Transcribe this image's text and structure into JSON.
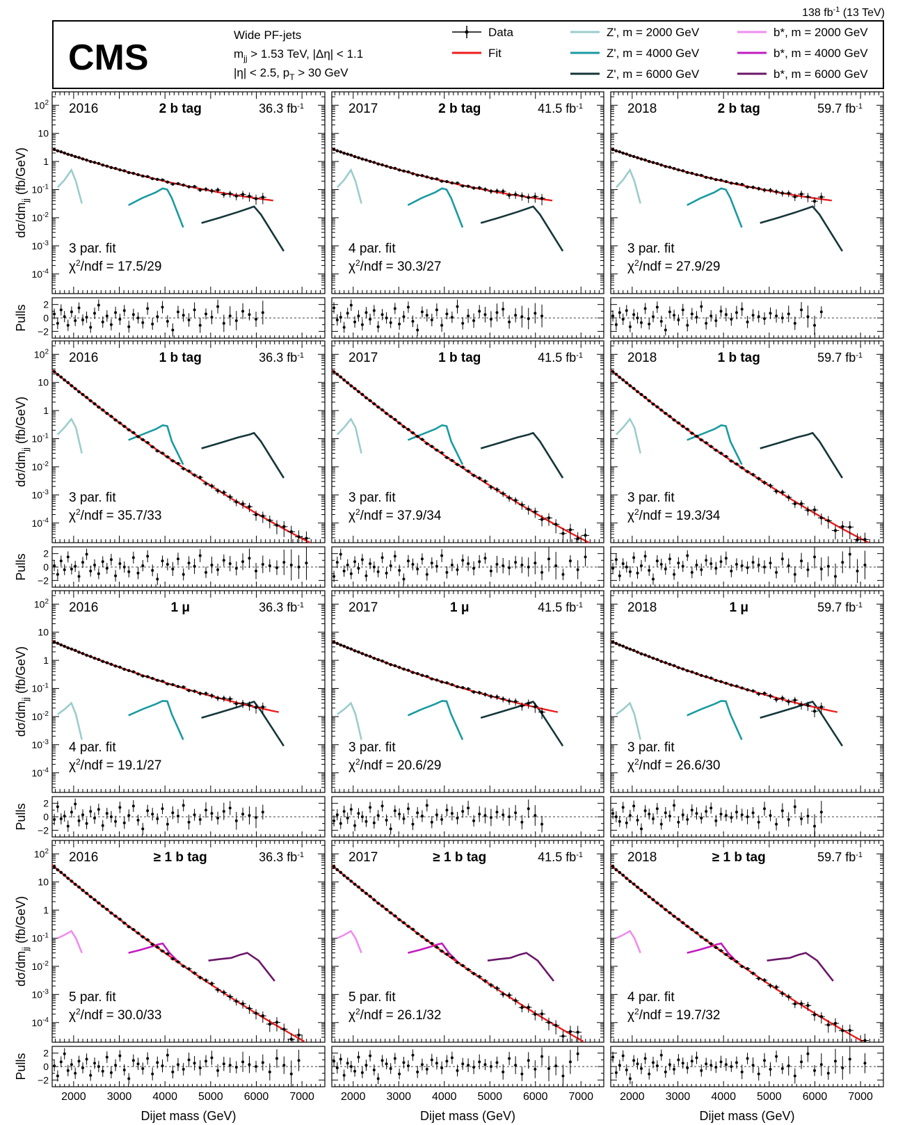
{
  "header": {
    "lumi_label": "138 fb",
    "lumi_sup": "-1",
    "lumi_energy": " (13 TeV)",
    "experiment": "CMS",
    "selection": [
      {
        "pre": "Wide PF-jets",
        "sub": "",
        "post": ""
      },
      {
        "pre": "m",
        "sub": "jj",
        "post": " > 1.53 TeV, |Δη| < 1.1"
      },
      {
        "pre": "|η| < 2.5, p",
        "sub": "T",
        "post": " > 30 GeV"
      }
    ]
  },
  "legend": [
    {
      "label": "Data",
      "type": "errorbar",
      "color": "#000000"
    },
    {
      "label": "Fit",
      "type": "line",
      "color": "#ee1c1c"
    },
    {
      "label": "Z', m = 2000 GeV",
      "type": "line",
      "color": "#9ccccc"
    },
    {
      "label": "Z', m = 4000 GeV",
      "type": "line",
      "color": "#1a9aa0"
    },
    {
      "label": "Z', m = 6000 GeV",
      "type": "line",
      "color": "#14363a"
    },
    {
      "label": "b*, m = 2000 GeV",
      "type": "line",
      "color": "#f08cee"
    },
    {
      "label": "b*, m = 4000 GeV",
      "type": "line",
      "color": "#c21bc0"
    },
    {
      "label": "b*, m = 6000 GeV",
      "type": "line",
      "color": "#6a1668"
    }
  ],
  "axis_labels": {
    "ylabel_main": "dσ/dm",
    "ylabel_sub": "jj",
    "ylabel_units": " (fb/GeV)",
    "ylabel_pulls": "Pulls",
    "xlabel": "Dijet mass (GeV)"
  },
  "chart_data": {
    "type": "scatter",
    "title": "",
    "xlabel": "Dijet mass (GeV)",
    "ylabel": "dσ/dm_jj (fb/GeV)",
    "xlim": [
      1530,
      7500
    ],
    "ylim": [
      2e-05,
      300
    ],
    "yscale": "log",
    "pulls_ylim": [
      -3,
      3
    ],
    "x_ticks": [
      2000,
      3000,
      4000,
      5000,
      6000,
      7000
    ],
    "y_ticks": [
      {
        "v": 100,
        "base": "10",
        "exp": "2"
      },
      {
        "v": 10,
        "base": "10",
        "exp": ""
      },
      {
        "v": 1,
        "base": "1",
        "exp": ""
      },
      {
        "v": 0.1,
        "base": "10",
        "exp": "-1"
      },
      {
        "v": 0.01,
        "base": "10",
        "exp": "-2"
      },
      {
        "v": 0.001,
        "base": "10",
        "exp": "-3"
      },
      {
        "v": 0.0001,
        "base": "10",
        "exp": "-4"
      }
    ],
    "pull_ticks": [
      2,
      0,
      -2
    ],
    "rows": [
      {
        "category": "2 b tag",
        "fit_start": 2.8,
        "fit_mid": 0.5,
        "fit_c": 1.3,
        "fit_end_x": 6400,
        "signals": [
          {
            "series": "Z', m = 2000 GeV",
            "x": [
              1650,
              1800,
              1950,
              2050,
              2180
            ],
            "y": [
              0.12,
              0.22,
              0.5,
              0.2,
              0.032
            ]
          },
          {
            "series": "Z', m = 4000 GeV",
            "x": [
              3200,
              3500,
              3800,
              3950,
              4050,
              4150,
              4400
            ],
            "y": [
              0.028,
              0.05,
              0.08,
              0.11,
              0.1,
              0.05,
              0.0045
            ]
          },
          {
            "series": "Z', m = 6000 GeV",
            "x": [
              4800,
              5200,
              5600,
              5850,
              5950,
              6100,
              6600
            ],
            "y": [
              0.0065,
              0.01,
              0.016,
              0.022,
              0.025,
              0.013,
              0.00065
            ]
          }
        ],
        "panels": [
          {
            "year": "2016",
            "lumi": "36.3",
            "fit_label": "3 par. fit",
            "chi2": "17.5/29"
          },
          {
            "year": "2017",
            "lumi": "41.5",
            "fit_label": "4 par. fit",
            "chi2": "30.3/27"
          },
          {
            "year": "2018",
            "lumi": "59.7",
            "fit_label": "3 par. fit",
            "chi2": "27.9/29"
          }
        ]
      },
      {
        "category": "1 b tag",
        "fit_start": 28,
        "fit_mid": 0.35,
        "fit_c": 1.6,
        "fit_end_x": 7500,
        "signals": [
          {
            "series": "Z', m = 2000 GeV",
            "x": [
              1650,
              1800,
              1950,
              2050,
              2180
            ],
            "y": [
              0.14,
              0.25,
              0.5,
              0.25,
              0.03
            ]
          },
          {
            "series": "Z', m = 4000 GeV",
            "x": [
              3200,
              3500,
              3800,
              3950,
              4050,
              4150,
              4400
            ],
            "y": [
              0.09,
              0.14,
              0.22,
              0.3,
              0.28,
              0.08,
              0.012
            ]
          },
          {
            "series": "Z', m = 6000 GeV",
            "x": [
              4800,
              5200,
              5600,
              5850,
              5950,
              6100,
              6600
            ],
            "y": [
              0.045,
              0.07,
              0.11,
              0.14,
              0.16,
              0.08,
              0.004
            ]
          }
        ],
        "panels": [
          {
            "year": "2016",
            "lumi": "36.3",
            "fit_label": "3 par. fit",
            "chi2": "35.7/33"
          },
          {
            "year": "2017",
            "lumi": "41.5",
            "fit_label": "3 par. fit",
            "chi2": "37.9/34"
          },
          {
            "year": "2018",
            "lumi": "59.7",
            "fit_label": "3 par. fit",
            "chi2": "19.3/34"
          }
        ]
      },
      {
        "category": "1 μ",
        "fit_start": 4.8,
        "fit_mid": 0.55,
        "fit_c": 1.25,
        "fit_end_x": 6500,
        "signals": [
          {
            "series": "Z', m = 2000 GeV",
            "x": [
              1650,
              1800,
              1950,
              2050,
              2180
            ],
            "y": [
              0.012,
              0.018,
              0.03,
              0.012,
              0.0015
            ]
          },
          {
            "series": "Z', m = 4000 GeV",
            "x": [
              3200,
              3500,
              3800,
              3950,
              4050,
              4150,
              4400
            ],
            "y": [
              0.011,
              0.018,
              0.028,
              0.036,
              0.035,
              0.012,
              0.0015
            ]
          },
          {
            "series": "Z', m = 6000 GeV",
            "x": [
              4800,
              5200,
              5600,
              5850,
              5950,
              6100,
              6600
            ],
            "y": [
              0.009,
              0.014,
              0.022,
              0.03,
              0.034,
              0.016,
              0.0009
            ]
          }
        ],
        "panels": [
          {
            "year": "2016",
            "lumi": "36.3",
            "fit_label": "4 par. fit",
            "chi2": "19.1/27"
          },
          {
            "year": "2017",
            "lumi": "41.5",
            "fit_label": "3 par. fit",
            "chi2": "20.6/29"
          },
          {
            "year": "2018",
            "lumi": "59.7",
            "fit_label": "3 par. fit",
            "chi2": "26.6/30"
          }
        ]
      },
      {
        "category": "≥ 1 b tag",
        "fit_start": 40,
        "fit_mid": 0.45,
        "fit_c": 1.5,
        "fit_end_x": 7500,
        "signals": [
          {
            "series": "b*, m = 2000 GeV",
            "x": [
              1650,
              1800,
              1950,
              2050,
              2180
            ],
            "y": [
              0.1,
              0.13,
              0.18,
              0.1,
              0.03
            ]
          },
          {
            "series": "b*, m = 4000 GeV",
            "x": [
              3200,
              3450,
              3700,
              3850,
              3950,
              4100,
              4300
            ],
            "y": [
              0.03,
              0.038,
              0.05,
              0.06,
              0.065,
              0.03,
              0.014
            ]
          },
          {
            "series": "b*, m = 6000 GeV",
            "x": [
              4950,
              5200,
              5450,
              5650,
              5800,
              6050,
              6400
            ],
            "y": [
              0.016,
              0.018,
              0.02,
              0.026,
              0.03,
              0.016,
              0.003
            ]
          }
        ],
        "panels": [
          {
            "year": "2016",
            "lumi": "36.3",
            "fit_label": "5 par. fit",
            "chi2": "30.0/33"
          },
          {
            "year": "2017",
            "lumi": "41.5",
            "fit_label": "5 par. fit",
            "chi2": "26.1/32"
          },
          {
            "year": "2018",
            "lumi": "59.7",
            "fit_label": "4 par. fit",
            "chi2": "19.7/32"
          }
        ]
      }
    ],
    "data_x": [
      1577,
      1650,
      1725,
      1800,
      1877,
      1955,
      2035,
      2117,
      2200,
      2285,
      2371,
      2459,
      2548,
      2638,
      2730,
      2823,
      2917,
      3013,
      3110,
      3209,
      3309,
      3411,
      3514,
      3619,
      3726,
      3834,
      3944,
      4056,
      4170,
      4286,
      4404,
      4524,
      4646,
      4770,
      4896,
      5025,
      5156,
      5289,
      5425,
      5563,
      5704,
      5847,
      5993,
      6142,
      6294,
      6449,
      6606,
      6766,
      6930,
      7096,
      7266,
      7439
    ],
    "pulls": [
      0.6,
      -0.8,
      1.2,
      0.2,
      -1.1,
      0.9,
      -0.4,
      1.5,
      -0.3,
      0.1,
      -1.4,
      0.7,
      1.9,
      -0.6,
      0.3,
      -1.0,
      0.8,
      -0.2,
      1.1,
      -1.3,
      0.5,
      0.0,
      -0.7,
      1.4,
      -0.9,
      0.2,
      1.6,
      -0.5,
      -1.8,
      0.9,
      0.4,
      -0.3,
      1.2,
      -1.1,
      0.6,
      0.1,
      1.7,
      -0.8,
      0.3,
      -0.4,
      1.0,
      0.5,
      -0.2,
      0.8,
      1.3,
      -0.6,
      0.4,
      0.2,
      -0.1,
      0.7,
      0.3,
      0.0
    ]
  }
}
